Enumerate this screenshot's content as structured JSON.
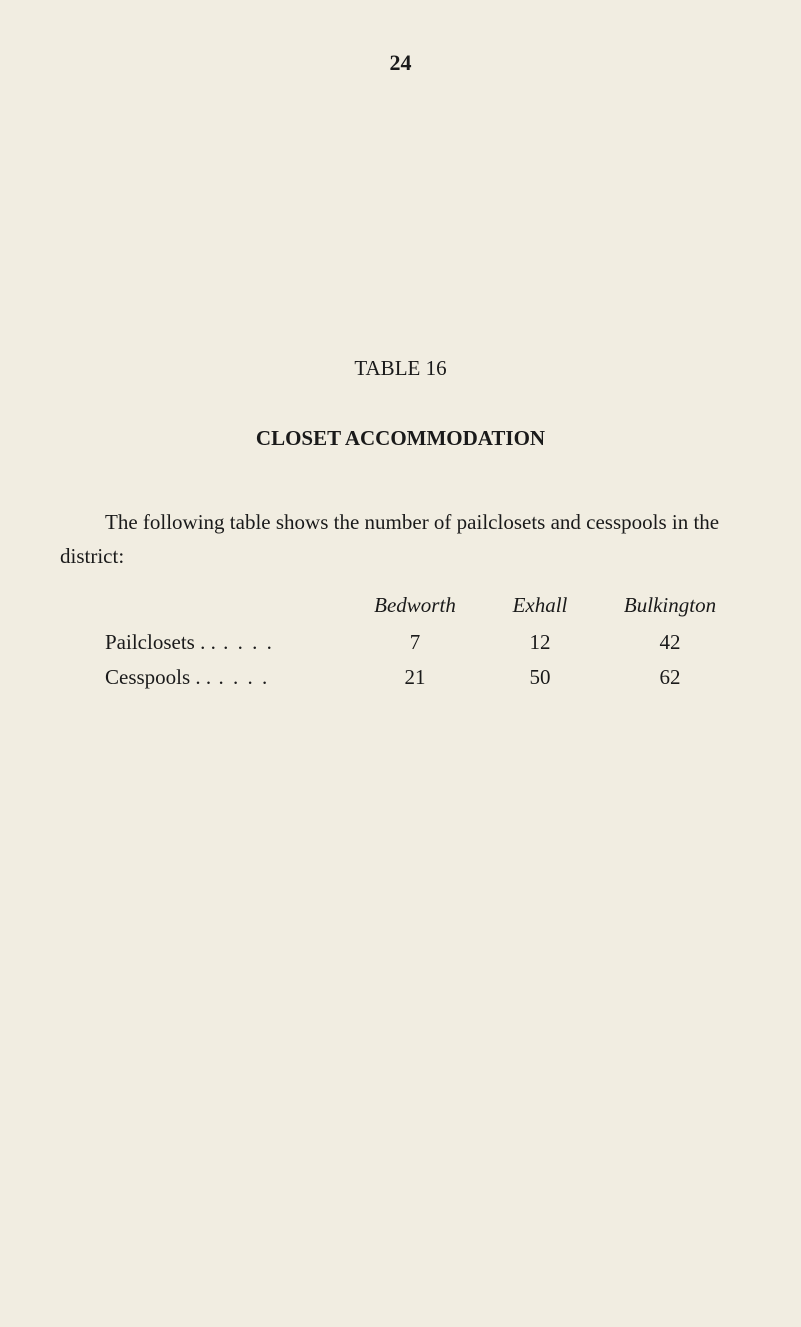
{
  "page_number": "24",
  "table_label": "TABLE 16",
  "section_title": "CLOSET ACCOMMODATION",
  "intro_text": "The following table shows the number of pailclosets and cesspools in the district:",
  "table": {
    "columns": [
      "Bedworth",
      "Exhall",
      "Bulkington"
    ],
    "rows": [
      {
        "label": "Pailclosets . .",
        "dots": " . .      . .",
        "values": [
          "7",
          "12",
          "42"
        ]
      },
      {
        "label": "Cesspools . .",
        "dots": " . .      . .",
        "values": [
          "21",
          "50",
          "62"
        ]
      }
    ]
  },
  "colors": {
    "background": "#f1ede1",
    "text": "#1a1a1a"
  },
  "typography": {
    "font_family": "Georgia, Times New Roman, serif",
    "body_fontsize": 21,
    "page_number_fontsize": 22
  }
}
